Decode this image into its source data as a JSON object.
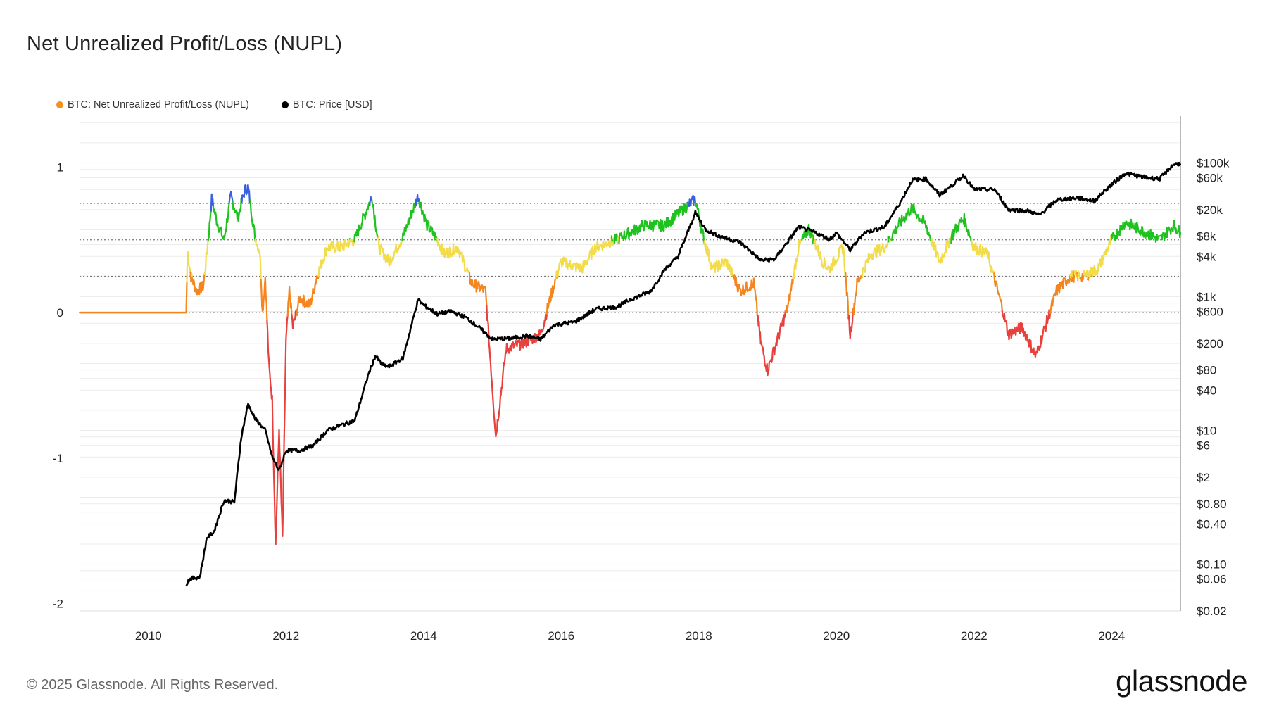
{
  "title": "Net Unrealized Profit/Loss (NUPL)",
  "footer": "© 2025 Glassnode. All Rights Reserved.",
  "brand": "glassnode",
  "colors": {
    "euphoria": "#3a5fe0",
    "belief": "#1fc21f",
    "optimism": "#f2dc4a",
    "hope": "#f5851e",
    "capitulation": "#e8413d",
    "price": "#000000",
    "grid": "#ececec"
  },
  "chart_data": {
    "type": "line",
    "legend": [
      {
        "name": "BTC: Net Unrealized Profit/Loss (NUPL)",
        "color": "#f5901e"
      },
      {
        "name": "BTC: Price [USD]",
        "color": "#000000"
      }
    ],
    "x_ticks": [
      "2010",
      "2012",
      "2014",
      "2016",
      "2018",
      "2020",
      "2022",
      "2024"
    ],
    "x_range": [
      2009.0,
      2025.0
    ],
    "y_left_ticks": [
      {
        "value": 1,
        "label": "1"
      },
      {
        "value": 0,
        "label": "0"
      },
      {
        "value": -1,
        "label": "-1"
      },
      {
        "value": -2,
        "label": "-2"
      }
    ],
    "y_left_range": [
      -2.05,
      1.35
    ],
    "y_right_scale": "log",
    "y_right_range": [
      0.02,
      500000
    ],
    "y_right_ticks": [
      {
        "value": 100000,
        "label": "$100k"
      },
      {
        "value": 60000,
        "label": "$60k"
      },
      {
        "value": 20000,
        "label": "$20k"
      },
      {
        "value": 8000,
        "label": "$8k"
      },
      {
        "value": 4000,
        "label": "$4k"
      },
      {
        "value": 1000,
        "label": "$1k"
      },
      {
        "value": 600,
        "label": "$600"
      },
      {
        "value": 200,
        "label": "$200"
      },
      {
        "value": 80,
        "label": "$80"
      },
      {
        "value": 40,
        "label": "$40"
      },
      {
        "value": 10,
        "label": "$10"
      },
      {
        "value": 6,
        "label": "$6"
      },
      {
        "value": 2,
        "label": "$2"
      },
      {
        "value": 0.8,
        "label": "$0.80"
      },
      {
        "value": 0.4,
        "label": "$0.40"
      },
      {
        "value": 0.1,
        "label": "$0.10"
      },
      {
        "value": 0.06,
        "label": "$0.06"
      },
      {
        "value": 0.02,
        "label": "$0.02"
      }
    ],
    "reference_lines": [
      0,
      0.25,
      0.5,
      0.75
    ],
    "nupl_series": [
      [
        2009.0,
        0.0
      ],
      [
        2010.55,
        0.0
      ],
      [
        2010.57,
        0.42
      ],
      [
        2010.62,
        0.25
      ],
      [
        2010.7,
        0.15
      ],
      [
        2010.8,
        0.18
      ],
      [
        2010.88,
        0.55
      ],
      [
        2010.92,
        0.78
      ],
      [
        2011.0,
        0.62
      ],
      [
        2011.1,
        0.5
      ],
      [
        2011.2,
        0.8
      ],
      [
        2011.3,
        0.65
      ],
      [
        2011.4,
        0.84
      ],
      [
        2011.45,
        0.86
      ],
      [
        2011.55,
        0.52
      ],
      [
        2011.62,
        0.42
      ],
      [
        2011.66,
        0.0
      ],
      [
        2011.7,
        0.25
      ],
      [
        2011.75,
        -0.35
      ],
      [
        2011.8,
        -0.6
      ],
      [
        2011.85,
        -1.6
      ],
      [
        2011.9,
        -0.8
      ],
      [
        2011.95,
        -1.55
      ],
      [
        2012.0,
        -0.2
      ],
      [
        2012.05,
        0.15
      ],
      [
        2012.1,
        -0.1
      ],
      [
        2012.2,
        0.1
      ],
      [
        2012.35,
        0.05
      ],
      [
        2012.45,
        0.25
      ],
      [
        2012.6,
        0.45
      ],
      [
        2012.8,
        0.45
      ],
      [
        2013.0,
        0.5
      ],
      [
        2013.25,
        0.8
      ],
      [
        2013.35,
        0.45
      ],
      [
        2013.5,
        0.35
      ],
      [
        2013.7,
        0.52
      ],
      [
        2013.92,
        0.8
      ],
      [
        2014.05,
        0.6
      ],
      [
        2014.2,
        0.5
      ],
      [
        2014.3,
        0.4
      ],
      [
        2014.5,
        0.45
      ],
      [
        2014.7,
        0.2
      ],
      [
        2014.9,
        0.15
      ],
      [
        2015.05,
        -0.85
      ],
      [
        2015.2,
        -0.25
      ],
      [
        2015.5,
        -0.2
      ],
      [
        2015.7,
        -0.15
      ],
      [
        2015.9,
        0.2
      ],
      [
        2016.0,
        0.35
      ],
      [
        2016.3,
        0.3
      ],
      [
        2016.5,
        0.45
      ],
      [
        2016.8,
        0.5
      ],
      [
        2017.0,
        0.55
      ],
      [
        2017.2,
        0.6
      ],
      [
        2017.5,
        0.6
      ],
      [
        2017.7,
        0.68
      ],
      [
        2017.95,
        0.78
      ],
      [
        2018.05,
        0.55
      ],
      [
        2018.2,
        0.3
      ],
      [
        2018.4,
        0.35
      ],
      [
        2018.6,
        0.15
      ],
      [
        2018.8,
        0.2
      ],
      [
        2018.9,
        -0.2
      ],
      [
        2019.0,
        -0.4
      ],
      [
        2019.1,
        -0.25
      ],
      [
        2019.3,
        0.05
      ],
      [
        2019.45,
        0.45
      ],
      [
        2019.6,
        0.58
      ],
      [
        2019.8,
        0.35
      ],
      [
        2019.9,
        0.3
      ],
      [
        2020.1,
        0.45
      ],
      [
        2020.2,
        -0.15
      ],
      [
        2020.3,
        0.2
      ],
      [
        2020.5,
        0.4
      ],
      [
        2020.7,
        0.45
      ],
      [
        2020.9,
        0.6
      ],
      [
        2021.1,
        0.72
      ],
      [
        2021.3,
        0.6
      ],
      [
        2021.5,
        0.35
      ],
      [
        2021.7,
        0.55
      ],
      [
        2021.85,
        0.65
      ],
      [
        2022.0,
        0.45
      ],
      [
        2022.2,
        0.4
      ],
      [
        2022.4,
        0.05
      ],
      [
        2022.5,
        -0.15
      ],
      [
        2022.7,
        -0.1
      ],
      [
        2022.9,
        -0.3
      ],
      [
        2023.0,
        -0.15
      ],
      [
        2023.2,
        0.15
      ],
      [
        2023.4,
        0.25
      ],
      [
        2023.6,
        0.25
      ],
      [
        2023.8,
        0.3
      ],
      [
        2024.0,
        0.5
      ],
      [
        2024.2,
        0.62
      ],
      [
        2024.5,
        0.55
      ],
      [
        2024.7,
        0.5
      ],
      [
        2024.9,
        0.6
      ],
      [
        2025.0,
        0.55
      ]
    ],
    "price_series": [
      [
        2010.55,
        0.05
      ],
      [
        2010.6,
        0.06
      ],
      [
        2010.75,
        0.065
      ],
      [
        2010.85,
        0.25
      ],
      [
        2010.95,
        0.3
      ],
      [
        2011.1,
        0.9
      ],
      [
        2011.25,
        0.85
      ],
      [
        2011.35,
        8
      ],
      [
        2011.45,
        25
      ],
      [
        2011.55,
        15
      ],
      [
        2011.7,
        10
      ],
      [
        2011.8,
        4
      ],
      [
        2011.9,
        2.5
      ],
      [
        2012.0,
        5
      ],
      [
        2012.2,
        5
      ],
      [
        2012.4,
        6
      ],
      [
        2012.6,
        10
      ],
      [
        2012.8,
        12
      ],
      [
        2013.0,
        14
      ],
      [
        2013.2,
        70
      ],
      [
        2013.3,
        130
      ],
      [
        2013.4,
        95
      ],
      [
        2013.5,
        90
      ],
      [
        2013.7,
        120
      ],
      [
        2013.92,
        900
      ],
      [
        2014.0,
        750
      ],
      [
        2014.2,
        550
      ],
      [
        2014.4,
        600
      ],
      [
        2014.6,
        500
      ],
      [
        2014.8,
        350
      ],
      [
        2015.0,
        230
      ],
      [
        2015.3,
        240
      ],
      [
        2015.5,
        260
      ],
      [
        2015.7,
        230
      ],
      [
        2015.9,
        380
      ],
      [
        2016.2,
        420
      ],
      [
        2016.5,
        650
      ],
      [
        2016.8,
        700
      ],
      [
        2017.0,
        900
      ],
      [
        2017.3,
        1200
      ],
      [
        2017.5,
        2500
      ],
      [
        2017.7,
        4000
      ],
      [
        2017.95,
        18000
      ],
      [
        2018.1,
        10000
      ],
      [
        2018.3,
        8000
      ],
      [
        2018.6,
        6500
      ],
      [
        2018.9,
        3500
      ],
      [
        2019.1,
        3600
      ],
      [
        2019.45,
        11000
      ],
      [
        2019.7,
        9000
      ],
      [
        2019.9,
        7200
      ],
      [
        2020.0,
        9000
      ],
      [
        2020.2,
        5000
      ],
      [
        2020.4,
        9000
      ],
      [
        2020.7,
        11000
      ],
      [
        2020.95,
        28000
      ],
      [
        2021.1,
        55000
      ],
      [
        2021.3,
        58000
      ],
      [
        2021.5,
        33000
      ],
      [
        2021.7,
        48000
      ],
      [
        2021.85,
        65000
      ],
      [
        2022.0,
        40000
      ],
      [
        2022.3,
        40000
      ],
      [
        2022.5,
        20000
      ],
      [
        2022.8,
        19000
      ],
      [
        2022.95,
        16500
      ],
      [
        2023.2,
        28000
      ],
      [
        2023.5,
        30000
      ],
      [
        2023.75,
        27000
      ],
      [
        2023.95,
        43000
      ],
      [
        2024.2,
        70000
      ],
      [
        2024.5,
        60000
      ],
      [
        2024.7,
        58000
      ],
      [
        2024.9,
        95000
      ],
      [
        2025.0,
        98000
      ]
    ]
  }
}
